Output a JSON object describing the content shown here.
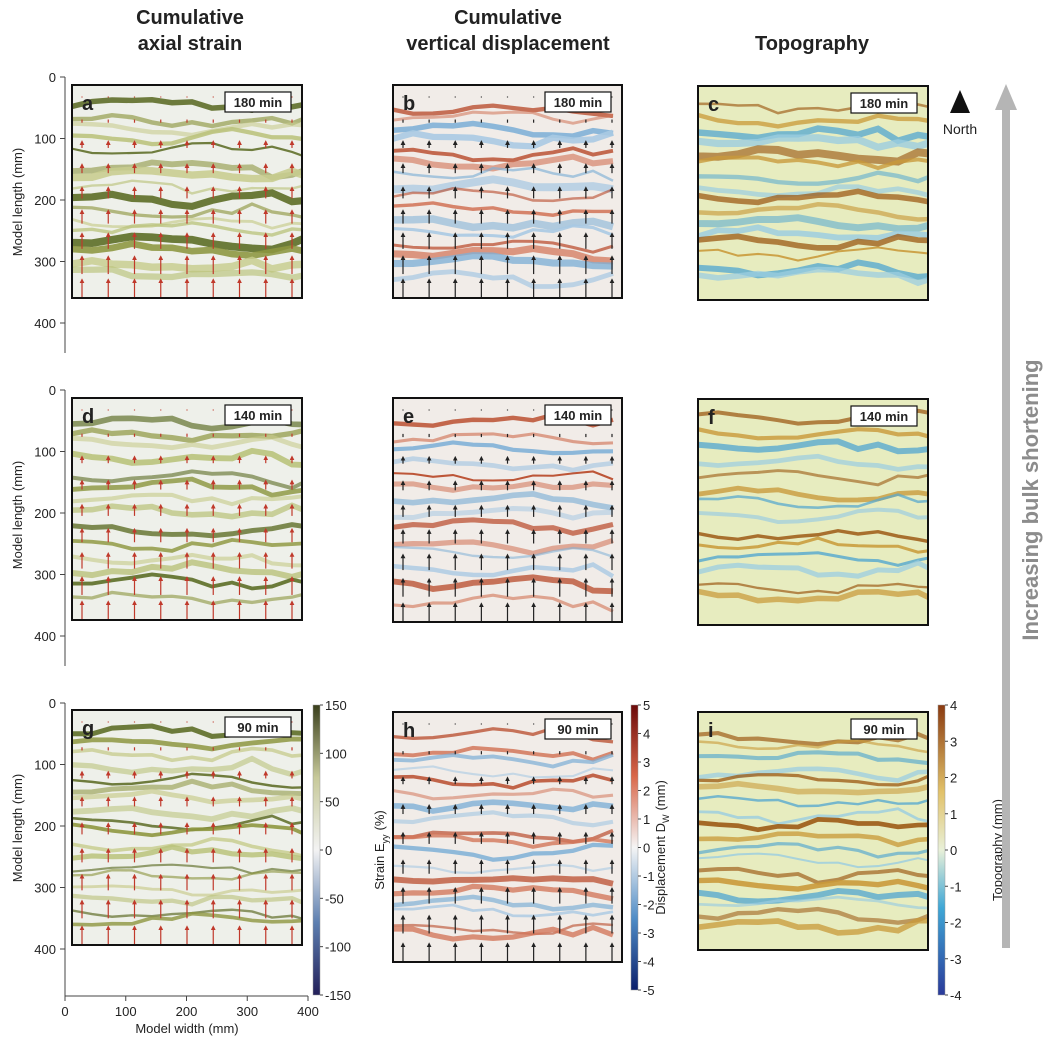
{
  "column_titles": [
    [
      "Cumulative",
      "axial strain"
    ],
    [
      "Cumulative",
      "vertical displacement"
    ],
    [
      "Topography"
    ]
  ],
  "panels": [
    {
      "letter": "a",
      "time": "180 min"
    },
    {
      "letter": "b",
      "time": "180 min"
    },
    {
      "letter": "c",
      "time": "180 min"
    },
    {
      "letter": "d",
      "time": "140 min"
    },
    {
      "letter": "e",
      "time": "140 min"
    },
    {
      "letter": "f",
      "time": "140 min"
    },
    {
      "letter": "g",
      "time": "90 min"
    },
    {
      "letter": "h",
      "time": "90 min"
    },
    {
      "letter": "i",
      "time": "90 min"
    }
  ],
  "north": "North",
  "side_label": "Increasing bulk shortening",
  "y_axis": {
    "label": "Model length (mm)",
    "ticks": [
      0,
      100,
      200,
      300,
      400
    ]
  },
  "x_axis": {
    "label": "Model width (mm)",
    "ticks": [
      0,
      100,
      200,
      300,
      400
    ]
  },
  "colorbars": [
    {
      "label": "Strain E",
      "sub": "yy",
      "unit": "(%)",
      "ticks": [
        150,
        100,
        50,
        0,
        -50,
        -100,
        -150
      ]
    },
    {
      "label": "Displacement D",
      "sub": "W",
      "unit": "(mm)",
      "ticks": [
        5,
        4,
        3,
        2,
        1,
        0,
        -1,
        -2,
        -3,
        -4,
        -5
      ]
    },
    {
      "label": "Topography (mm)",
      "ticks": [
        4,
        3,
        2,
        1,
        0,
        -1,
        -2,
        -3,
        -4
      ]
    }
  ]
}
